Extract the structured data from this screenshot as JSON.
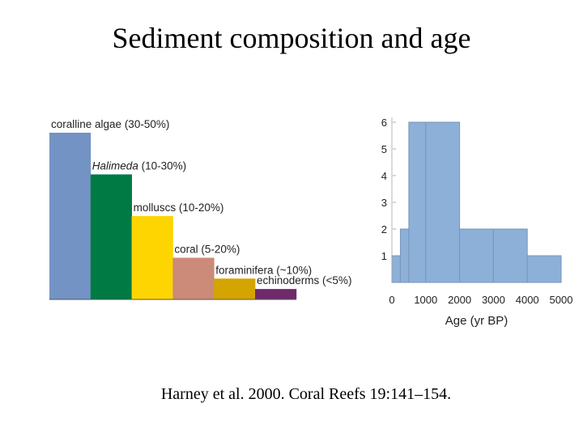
{
  "slide": {
    "title": "Sediment composition and age",
    "citation": "Harney et al. 2000. Coral Reefs 19:141–154."
  },
  "colors": {
    "bar_blue": "#7393c4",
    "bar_green": "#007a44",
    "bar_yellow": "#fed500",
    "bar_salmon": "#cc8a78",
    "bar_gold": "#d4a500",
    "bar_purple": "#6e2a6a",
    "histogram": "#8cb0d8",
    "histogram_edge": "#7a95b8"
  },
  "chart_data": [
    {
      "type": "bar",
      "title": "",
      "categories": [
        {
          "name": "coralline algae",
          "range": "(30-50%)",
          "italic": false
        },
        {
          "name": "Halimeda",
          "range": "(10-30%)",
          "italic": true
        },
        {
          "name": "molluscs",
          "range": "(10-20%)",
          "italic": false
        },
        {
          "name": "coral",
          "range": "(5-20%)",
          "italic": false
        },
        {
          "name": "foraminifera",
          "range": "(~10%)",
          "italic": false
        },
        {
          "name": "echinoderms",
          "range": "(<5%)",
          "italic": false
        }
      ],
      "values": [
        40,
        30,
        20,
        10,
        5,
        2.5
      ],
      "bar_colors": [
        "#7393c4",
        "#007a44",
        "#fed500",
        "#cc8a78",
        "#d4a500",
        "#6e2a6a"
      ]
    },
    {
      "type": "bar",
      "title": "",
      "xlabel": "Age (yr BP)",
      "ylabel": "",
      "xlim": [
        0,
        5000
      ],
      "ylim": [
        0,
        6
      ],
      "x_ticks": [
        "0",
        "1000",
        "2000",
        "3000",
        "4000",
        "5000"
      ],
      "y_ticks": [
        "1",
        "2",
        "3",
        "4",
        "5",
        "6"
      ],
      "bins": [
        {
          "x0": 0,
          "x1": 250,
          "value": 1
        },
        {
          "x0": 250,
          "x1": 500,
          "value": 2
        },
        {
          "x0": 500,
          "x1": 1000,
          "value": 6
        },
        {
          "x0": 1000,
          "x1": 2000,
          "value": 6
        },
        {
          "x0": 2000,
          "x1": 3000,
          "value": 2
        },
        {
          "x0": 3000,
          "x1": 4000,
          "value": 2
        },
        {
          "x0": 4000,
          "x1": 5000,
          "value": 1
        }
      ]
    }
  ]
}
